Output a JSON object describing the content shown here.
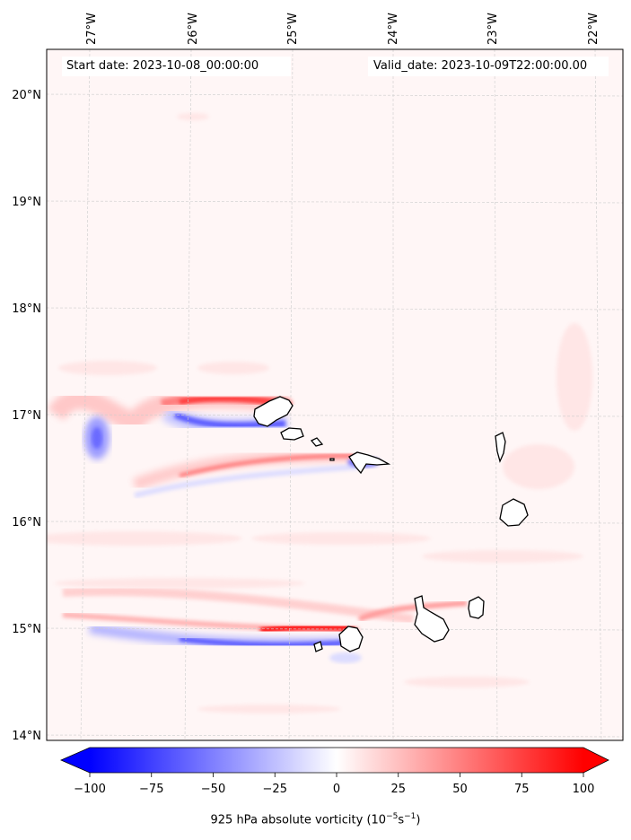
{
  "header": {
    "start_date": "Start date: 2023-10-08_00:00:00",
    "valid_date": "Valid_date: 2023-10-09T22:00:00.00"
  },
  "map": {
    "lon_labels": [
      "27°W",
      "26°W",
      "25°W",
      "24°W",
      "23°W",
      "22°W"
    ],
    "lat_labels": [
      "20°N",
      "19°N",
      "18°N",
      "17°N",
      "16°N",
      "15°N",
      "14°N"
    ]
  },
  "colorbar": {
    "ticks": [
      "−100",
      "−75",
      "−50",
      "−25",
      "0",
      "25",
      "50",
      "75",
      "100"
    ],
    "title_main": "925 hPa absolute vorticity (10",
    "title_sup1": "−5",
    "title_mid": "s",
    "title_sup2": "−1",
    "title_end": ")",
    "color_negative": "#0000ff",
    "color_zero": "#ffffff",
    "color_positive": "#ff0000"
  }
}
